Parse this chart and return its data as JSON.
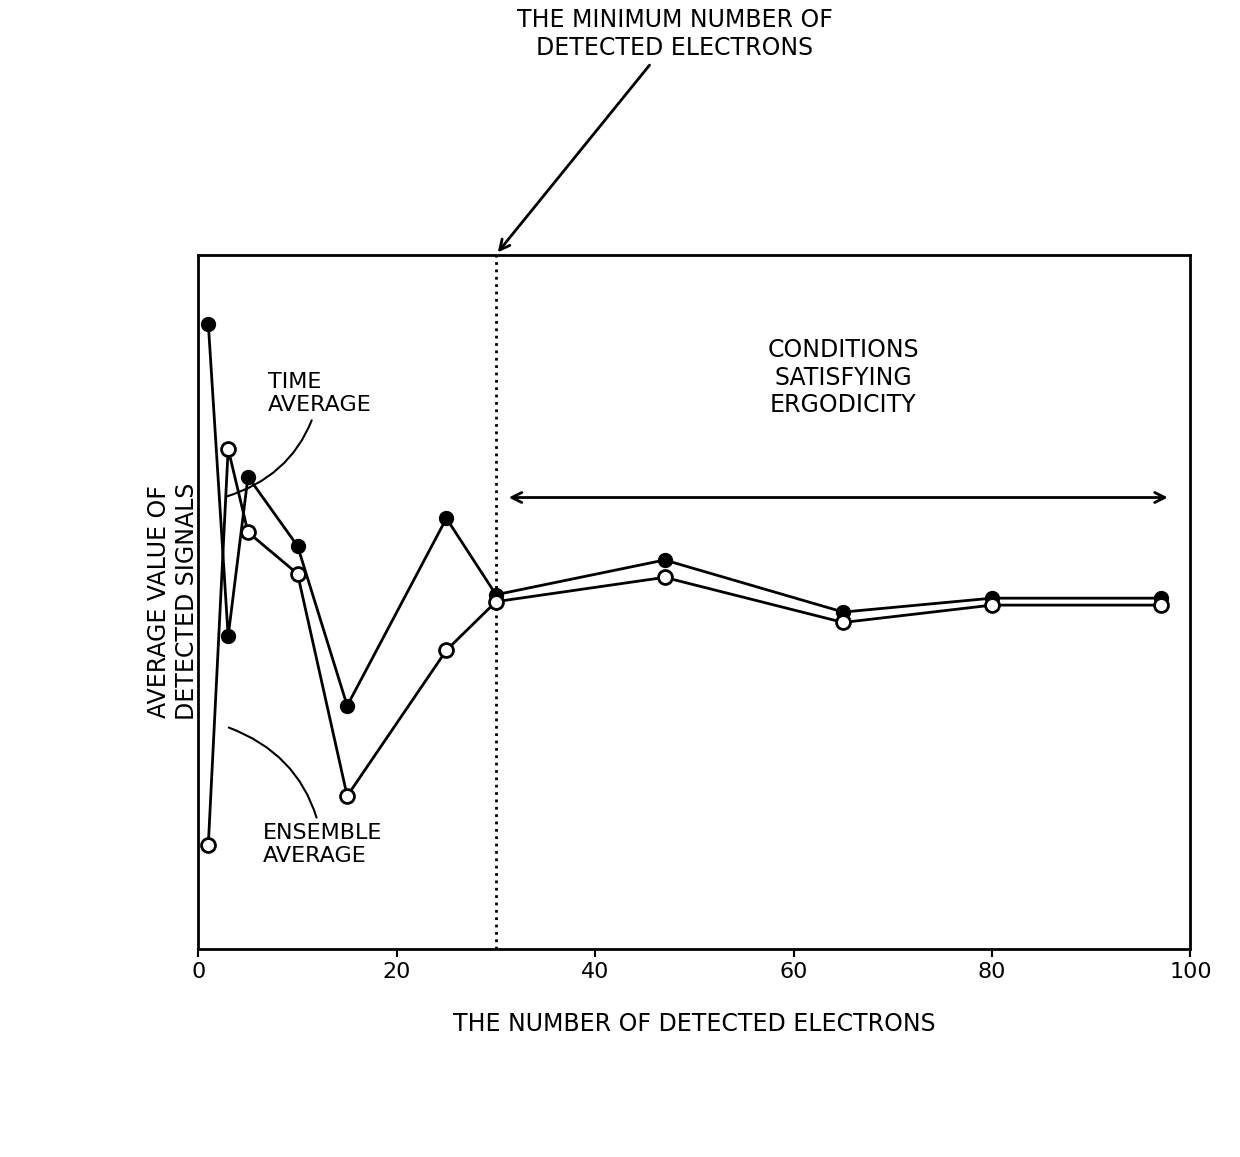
{
  "title_annotation_line1": "THE MINIMUM NUMBER OF",
  "title_annotation_line2": "DETECTED ELECTRONS",
  "xlabel": "THE NUMBER OF DETECTED ELECTRONS",
  "ylabel": "AVERAGE VALUE OF\nDETECTED SIGNALS",
  "xlim": [
    0,
    100
  ],
  "ylim": [
    0,
    10
  ],
  "xticks": [
    0,
    20,
    40,
    60,
    80,
    100
  ],
  "vertical_line_x": 30,
  "ergodicity_text": "CONDITIONS\nSATISFYING\nERGODICITY",
  "time_avg_label": "TIME\nAVERAGE",
  "ensemble_avg_label": "ENSEMBLE\nAVERAGE",
  "time_avg_x": [
    1,
    3,
    5,
    10,
    15,
    25,
    30,
    47,
    65,
    80,
    97
  ],
  "time_avg_y": [
    9.0,
    4.5,
    6.8,
    5.8,
    3.5,
    6.2,
    5.1,
    5.6,
    4.85,
    5.05,
    5.05
  ],
  "ensemble_avg_x": [
    1,
    3,
    5,
    10,
    15,
    25,
    30,
    47,
    65,
    80,
    97
  ],
  "ensemble_avg_y": [
    1.5,
    7.2,
    6.0,
    5.4,
    2.2,
    4.3,
    5.0,
    5.35,
    4.7,
    4.95,
    4.95
  ],
  "background_color": "#ffffff",
  "line_color": "#000000",
  "fontsize_labels": 17,
  "fontsize_axis_ticks": 16,
  "fontsize_annotation": 15,
  "fontsize_inside": 16
}
